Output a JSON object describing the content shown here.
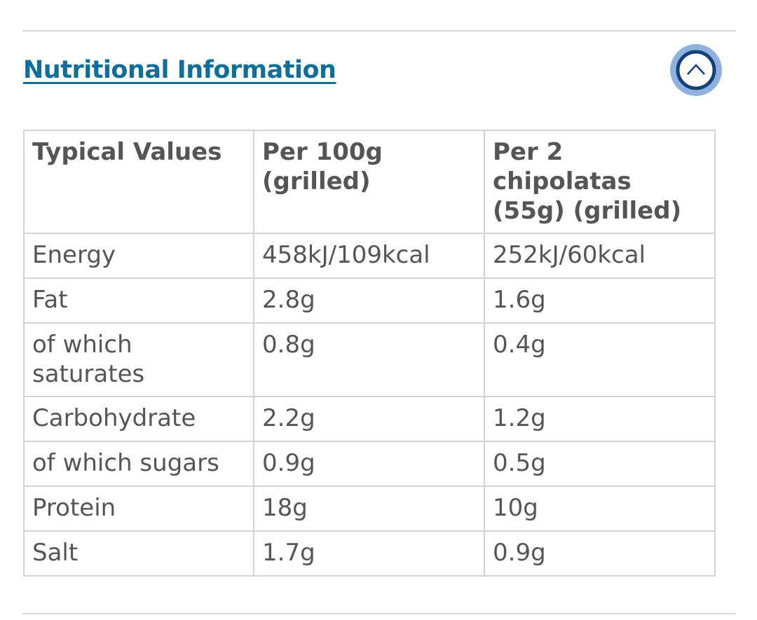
{
  "header": {
    "title": "Nutritional Information"
  },
  "table": {
    "columns": [
      "Typical Values",
      "Per 100g (grilled)",
      "Per 2 chipolatas (55g) (grilled)"
    ],
    "rows": [
      [
        "Energy",
        "458kJ/109kcal",
        "252kJ/60kcal"
      ],
      [
        "Fat",
        "2.8g",
        "1.6g"
      ],
      [
        "of which saturates",
        "0.8g",
        "0.4g"
      ],
      [
        "Carbohydrate",
        "2.2g",
        "1.2g"
      ],
      [
        "of which sugars",
        "0.9g",
        "0.5g"
      ],
      [
        "Protein",
        "18g",
        "10g"
      ],
      [
        "Salt",
        "1.7g",
        "0.9g"
      ]
    ]
  }
}
